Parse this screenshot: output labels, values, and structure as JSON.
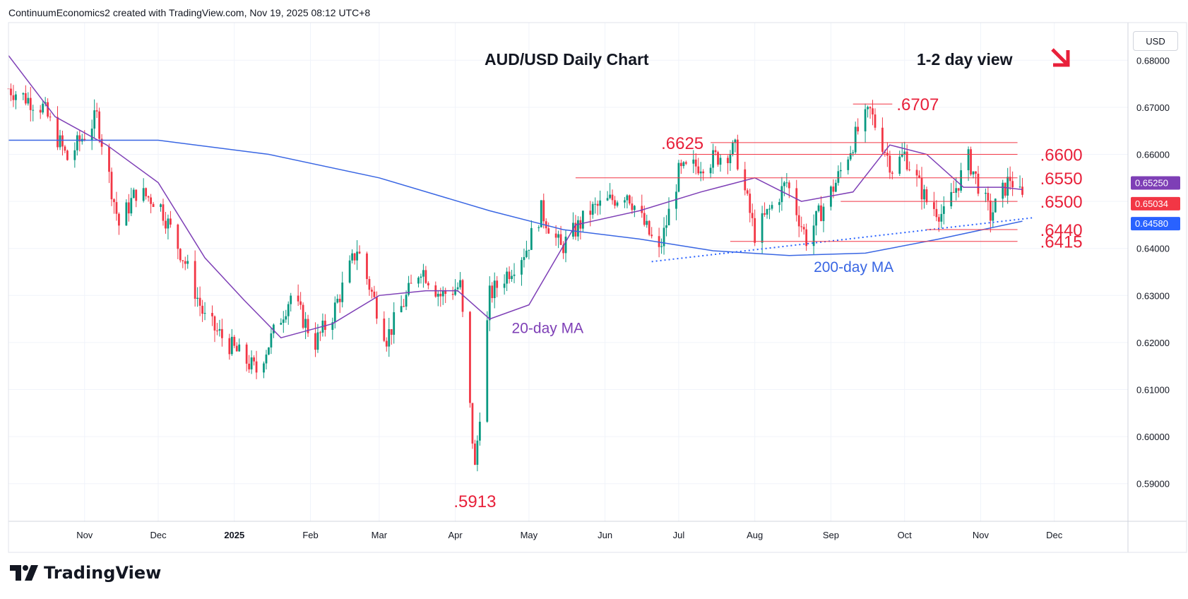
{
  "header": {
    "attribution": "ContinuumEconomics2 created with TradingView.com, Nov 19, 2025 08:12 UTC+8"
  },
  "branding": {
    "logo_text": "TradingView",
    "logo_icon": "tradingview-logo-icon"
  },
  "price_axis": {
    "unit": "USD"
  },
  "colors": {
    "candle_up": "#089981",
    "candle_down": "#f23645",
    "ma20": "#7e3fb6",
    "ma200": "#3966e3",
    "level_line": "#f23645",
    "annotation_red": "#e8203a",
    "trendline": "#2962ff"
  },
  "chart_data": {
    "type": "candlestick",
    "title": "AUD/USD Daily Chart",
    "subtitle": "1-2 day view",
    "view_direction_icon": "arrow-down-right-icon",
    "ylim": [
      0.582,
      0.688
    ],
    "y_ticks": [
      0.59,
      0.6,
      0.61,
      0.62,
      0.63,
      0.64,
      0.65,
      0.66,
      0.67,
      0.68
    ],
    "y_tick_labels": [
      "0.59000",
      "0.60000",
      "0.61000",
      "0.62000",
      "0.63000",
      "0.64000",
      "0.65000",
      "0.66000",
      "0.67000",
      "0.68000"
    ],
    "x_labels": [
      "Nov",
      "Dec",
      "2025",
      "Feb",
      "Mar",
      "Apr",
      "May",
      "Jun",
      "Jul",
      "Aug",
      "Sep",
      "Oct",
      "Nov",
      "Dec"
    ],
    "x_label_dates": [
      "2024-11-01",
      "2024-12-01",
      "2025-01-01",
      "2025-02-01",
      "2025-03-01",
      "2025-04-01",
      "2025-05-01",
      "2025-06-01",
      "2025-07-01",
      "2025-08-01",
      "2025-09-01",
      "2025-10-01",
      "2025-11-01",
      "2025-12-01"
    ],
    "bold_x_labels": [
      "2025"
    ],
    "price_trend": [
      [
        "2024-10-01",
        0.674
      ],
      [
        "2024-10-15",
        0.67
      ],
      [
        "2024-10-25",
        0.659
      ],
      [
        "2024-11-06",
        0.668
      ],
      [
        "2024-11-15",
        0.645
      ],
      [
        "2024-11-22",
        0.652
      ],
      [
        "2024-12-01",
        0.65
      ],
      [
        "2024-12-12",
        0.637
      ],
      [
        "2024-12-20",
        0.625
      ],
      [
        "2024-12-31",
        0.619
      ],
      [
        "2025-01-10",
        0.614
      ],
      [
        "2025-01-24",
        0.63
      ],
      [
        "2025-02-03",
        0.62
      ],
      [
        "2025-02-10",
        0.626
      ],
      [
        "2025-02-20",
        0.64
      ],
      [
        "2025-03-04",
        0.621
      ],
      [
        "2025-03-18",
        0.636
      ],
      [
        "2025-03-26",
        0.63
      ],
      [
        "2025-04-03",
        0.632
      ],
      [
        "2025-04-09",
        0.593
      ],
      [
        "2025-04-15",
        0.63
      ],
      [
        "2025-04-30",
        0.64
      ],
      [
        "2025-05-06",
        0.648
      ],
      [
        "2025-05-14",
        0.64
      ],
      [
        "2025-05-26",
        0.648
      ],
      [
        "2025-06-10",
        0.652
      ],
      [
        "2025-06-23",
        0.639
      ],
      [
        "2025-07-01",
        0.656
      ],
      [
        "2025-07-10",
        0.658
      ],
      [
        "2025-07-24",
        0.661
      ],
      [
        "2025-08-01",
        0.643
      ],
      [
        "2025-08-14",
        0.654
      ],
      [
        "2025-08-22",
        0.642
      ],
      [
        "2025-09-03",
        0.654
      ],
      [
        "2025-09-12",
        0.665
      ],
      [
        "2025-09-17",
        0.669
      ],
      [
        "2025-09-26",
        0.657
      ],
      [
        "2025-10-01",
        0.66
      ],
      [
        "2025-10-10",
        0.65
      ],
      [
        "2025-10-17",
        0.647
      ],
      [
        "2025-10-27",
        0.659
      ],
      [
        "2025-11-05",
        0.647
      ],
      [
        "2025-11-13",
        0.655
      ],
      [
        "2025-11-18",
        0.6503
      ]
    ],
    "ma20": [
      [
        "2024-10-01",
        0.681
      ],
      [
        "2024-10-20",
        0.668
      ],
      [
        "2024-11-10",
        0.662
      ],
      [
        "2024-12-01",
        0.654
      ],
      [
        "2024-12-20",
        0.638
      ],
      [
        "2025-01-05",
        0.629
      ],
      [
        "2025-01-20",
        0.621
      ],
      [
        "2025-02-10",
        0.624
      ],
      [
        "2025-03-01",
        0.63
      ],
      [
        "2025-03-20",
        0.631
      ],
      [
        "2025-04-02",
        0.631
      ],
      [
        "2025-04-15",
        0.625
      ],
      [
        "2025-05-01",
        0.628
      ],
      [
        "2025-05-20",
        0.645
      ],
      [
        "2025-06-15",
        0.648
      ],
      [
        "2025-07-10",
        0.652
      ],
      [
        "2025-08-01",
        0.655
      ],
      [
        "2025-08-20",
        0.65
      ],
      [
        "2025-09-10",
        0.652
      ],
      [
        "2025-09-25",
        0.662
      ],
      [
        "2025-10-10",
        0.66
      ],
      [
        "2025-10-25",
        0.653
      ],
      [
        "2025-11-10",
        0.653
      ],
      [
        "2025-11-18",
        0.6525
      ]
    ],
    "ma200": [
      [
        "2024-10-01",
        0.663
      ],
      [
        "2024-12-01",
        0.663
      ],
      [
        "2025-01-15",
        0.66
      ],
      [
        "2025-03-01",
        0.655
      ],
      [
        "2025-04-15",
        0.648
      ],
      [
        "2025-05-15",
        0.644
      ],
      [
        "2025-06-15",
        0.642
      ],
      [
        "2025-07-15",
        0.6395
      ],
      [
        "2025-08-15",
        0.6385
      ],
      [
        "2025-09-15",
        0.639
      ],
      [
        "2025-10-15",
        0.642
      ],
      [
        "2025-11-18",
        0.6458
      ]
    ],
    "trendline": {
      "from": [
        "2025-06-20",
        0.6372
      ],
      "to": [
        "2025-11-22",
        0.6465
      ]
    },
    "levels": [
      {
        "label": ".6707",
        "value": 0.6707,
        "from": "2025-09-10",
        "to": "2025-09-26"
      },
      {
        "label": ".6625",
        "value": 0.6625,
        "from": "2025-07-14",
        "to": "2025-11-16"
      },
      {
        "label": ".6600",
        "value": 0.66,
        "from": "2025-07-01",
        "to": "2025-11-16"
      },
      {
        "label": ".6550",
        "value": 0.655,
        "from": "2025-05-20",
        "to": "2025-11-16"
      },
      {
        "label": ".6500",
        "value": 0.65,
        "from": "2025-09-05",
        "to": "2025-11-16"
      },
      {
        "label": ".6440",
        "value": 0.644,
        "from": "2025-10-10",
        "to": "2025-11-16"
      },
      {
        "label": ".6415",
        "value": 0.6415,
        "from": "2025-07-22",
        "to": "2025-11-16"
      }
    ],
    "low_label": ".5913",
    "ma20_label": "20-day MA",
    "ma200_label": "200-day MA",
    "price_badges": [
      {
        "label": "0.65250",
        "value": 0.6525,
        "color": "#7e3fb6"
      },
      {
        "label": "0.65034",
        "value": 0.65034,
        "color": "#f23645"
      },
      {
        "label": "0.64580",
        "value": 0.6458,
        "color": "#2962ff"
      }
    ]
  }
}
